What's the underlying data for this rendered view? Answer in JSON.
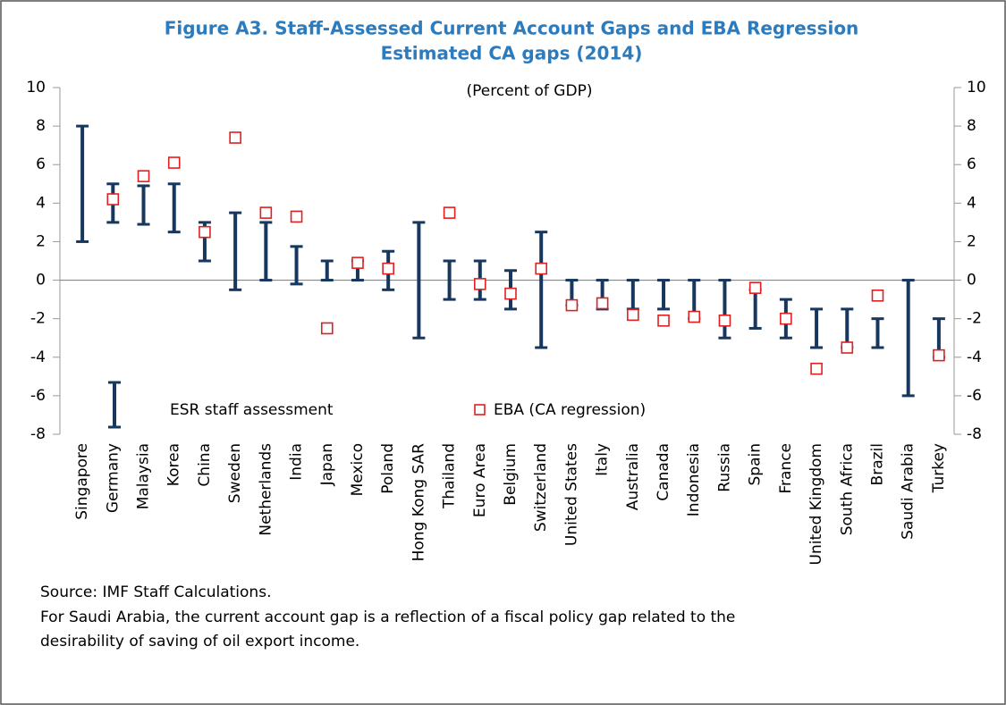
{
  "chart_data": {
    "type": "range",
    "title": [
      "Figure A3.  Staff-Assessed Current Account Gaps and EBA Regression",
      "Estimated CA gaps (2014)"
    ],
    "subtitle": "(Percent of GDP)",
    "categories": [
      "Singapore",
      "Germany",
      "Malaysia",
      "Korea",
      "China",
      "Sweden",
      "Netherlands",
      "India",
      "Japan",
      "Mexico",
      "Poland",
      "Hong Kong SAR",
      "Thailand",
      "Euro Area",
      "Belgium",
      "Switzerland",
      "United States",
      "Italy",
      "Australia",
      "Canada",
      "Indonesia",
      "Russia",
      "Spain",
      "France",
      "United Kingdom",
      "South Africa",
      "Brazil",
      "Saudi Arabia",
      "Turkey"
    ],
    "series": [
      {
        "name": "ESR staff assessment",
        "color": "#17375e",
        "low": [
          2,
          3,
          2.9,
          2.5,
          1,
          -0.5,
          0,
          -0.2,
          0,
          0,
          -0.5,
          -3,
          -1,
          -1,
          -1.5,
          -3.5,
          -1.3,
          -1.5,
          -1.5,
          -1.5,
          -2,
          -3,
          -2.5,
          -3,
          -3.5,
          -3.5,
          -3.5,
          -6,
          -4
        ],
        "high": [
          8,
          5,
          4.9,
          5,
          3,
          3.5,
          3,
          1.75,
          1,
          1,
          1.5,
          3,
          1,
          1,
          0.5,
          2.5,
          0,
          0,
          0,
          0,
          0,
          0,
          -0.5,
          -1,
          -1.5,
          -1.5,
          -2,
          0,
          -2
        ]
      },
      {
        "name": "EBA (CA regression)",
        "color": "#e02020",
        "values": [
          null,
          4.2,
          5.4,
          6.1,
          2.5,
          7.4,
          3.5,
          3.3,
          -2.5,
          0.9,
          0.6,
          null,
          3.5,
          -0.2,
          -0.7,
          0.6,
          -1.3,
          -1.2,
          -1.8,
          -2.1,
          -1.9,
          -2.1,
          -0.4,
          -2.0,
          -4.6,
          -3.5,
          -0.8,
          null,
          -3.9
        ]
      }
    ],
    "ylim": [
      -8,
      10
    ],
    "yticks": [
      10,
      8,
      6,
      4,
      2,
      0,
      -2,
      -4,
      -6,
      -8
    ],
    "y2lim": [
      -8,
      10
    ],
    "y2ticks": [
      10,
      8,
      6,
      4,
      2,
      0,
      -2,
      -4,
      -6,
      -8
    ],
    "legend": "bottom-left",
    "notes": [
      "Source: IMF Staff Calculations.",
      "For Saudi Arabia, the current account gap is a reflection of a fiscal policy gap related to the",
      "desirability of saving of oil export income."
    ]
  }
}
